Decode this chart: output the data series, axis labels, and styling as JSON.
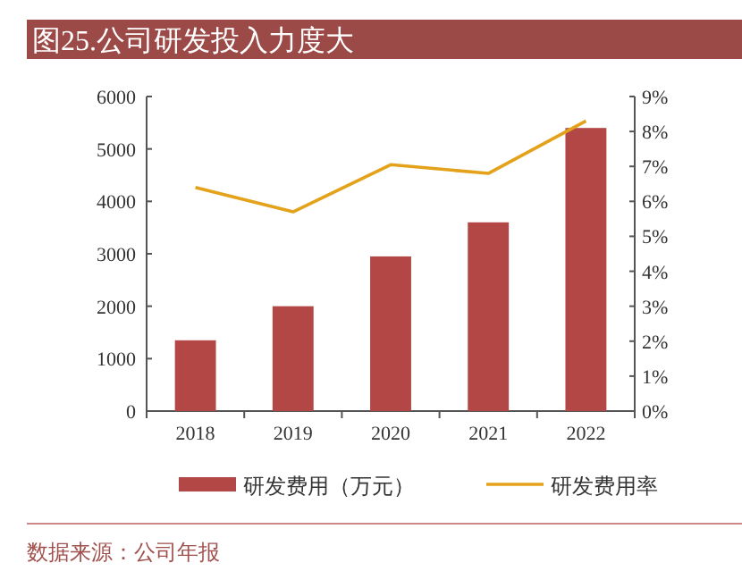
{
  "chart_data": {
    "type": "bar",
    "title": "图25.公司研发投入力度大",
    "categories": [
      "2018",
      "2019",
      "2020",
      "2021",
      "2022"
    ],
    "series": [
      {
        "name": "研发费用（万元）",
        "color": "#b24745",
        "values": [
          1350,
          2000,
          2950,
          3600,
          5400
        ]
      },
      {
        "name": "研发费用率",
        "type": "line",
        "axis": "y2",
        "color": "#e3a21a",
        "values": [
          6.4,
          5.7,
          7.05,
          6.8,
          8.3
        ]
      }
    ],
    "ylim": [
      0,
      6000
    ],
    "yticks": [
      0,
      1000,
      2000,
      3000,
      4000,
      5000,
      6000
    ],
    "y2lim": [
      0,
      9
    ],
    "y2ticks": [
      {
        "value": 0,
        "label": "0%"
      },
      {
        "value": 1,
        "label": "1%"
      },
      {
        "value": 2,
        "label": "2%"
      },
      {
        "value": 3,
        "label": "3%"
      },
      {
        "value": 4,
        "label": "4%"
      },
      {
        "value": 5,
        "label": "5%"
      },
      {
        "value": 6,
        "label": "6%"
      },
      {
        "value": 7,
        "label": "7%"
      },
      {
        "value": 8,
        "label": "8%"
      },
      {
        "value": 9,
        "label": "9%"
      }
    ],
    "legend": "bottom",
    "annotations": [
      "数据来源：公司年报"
    ]
  }
}
